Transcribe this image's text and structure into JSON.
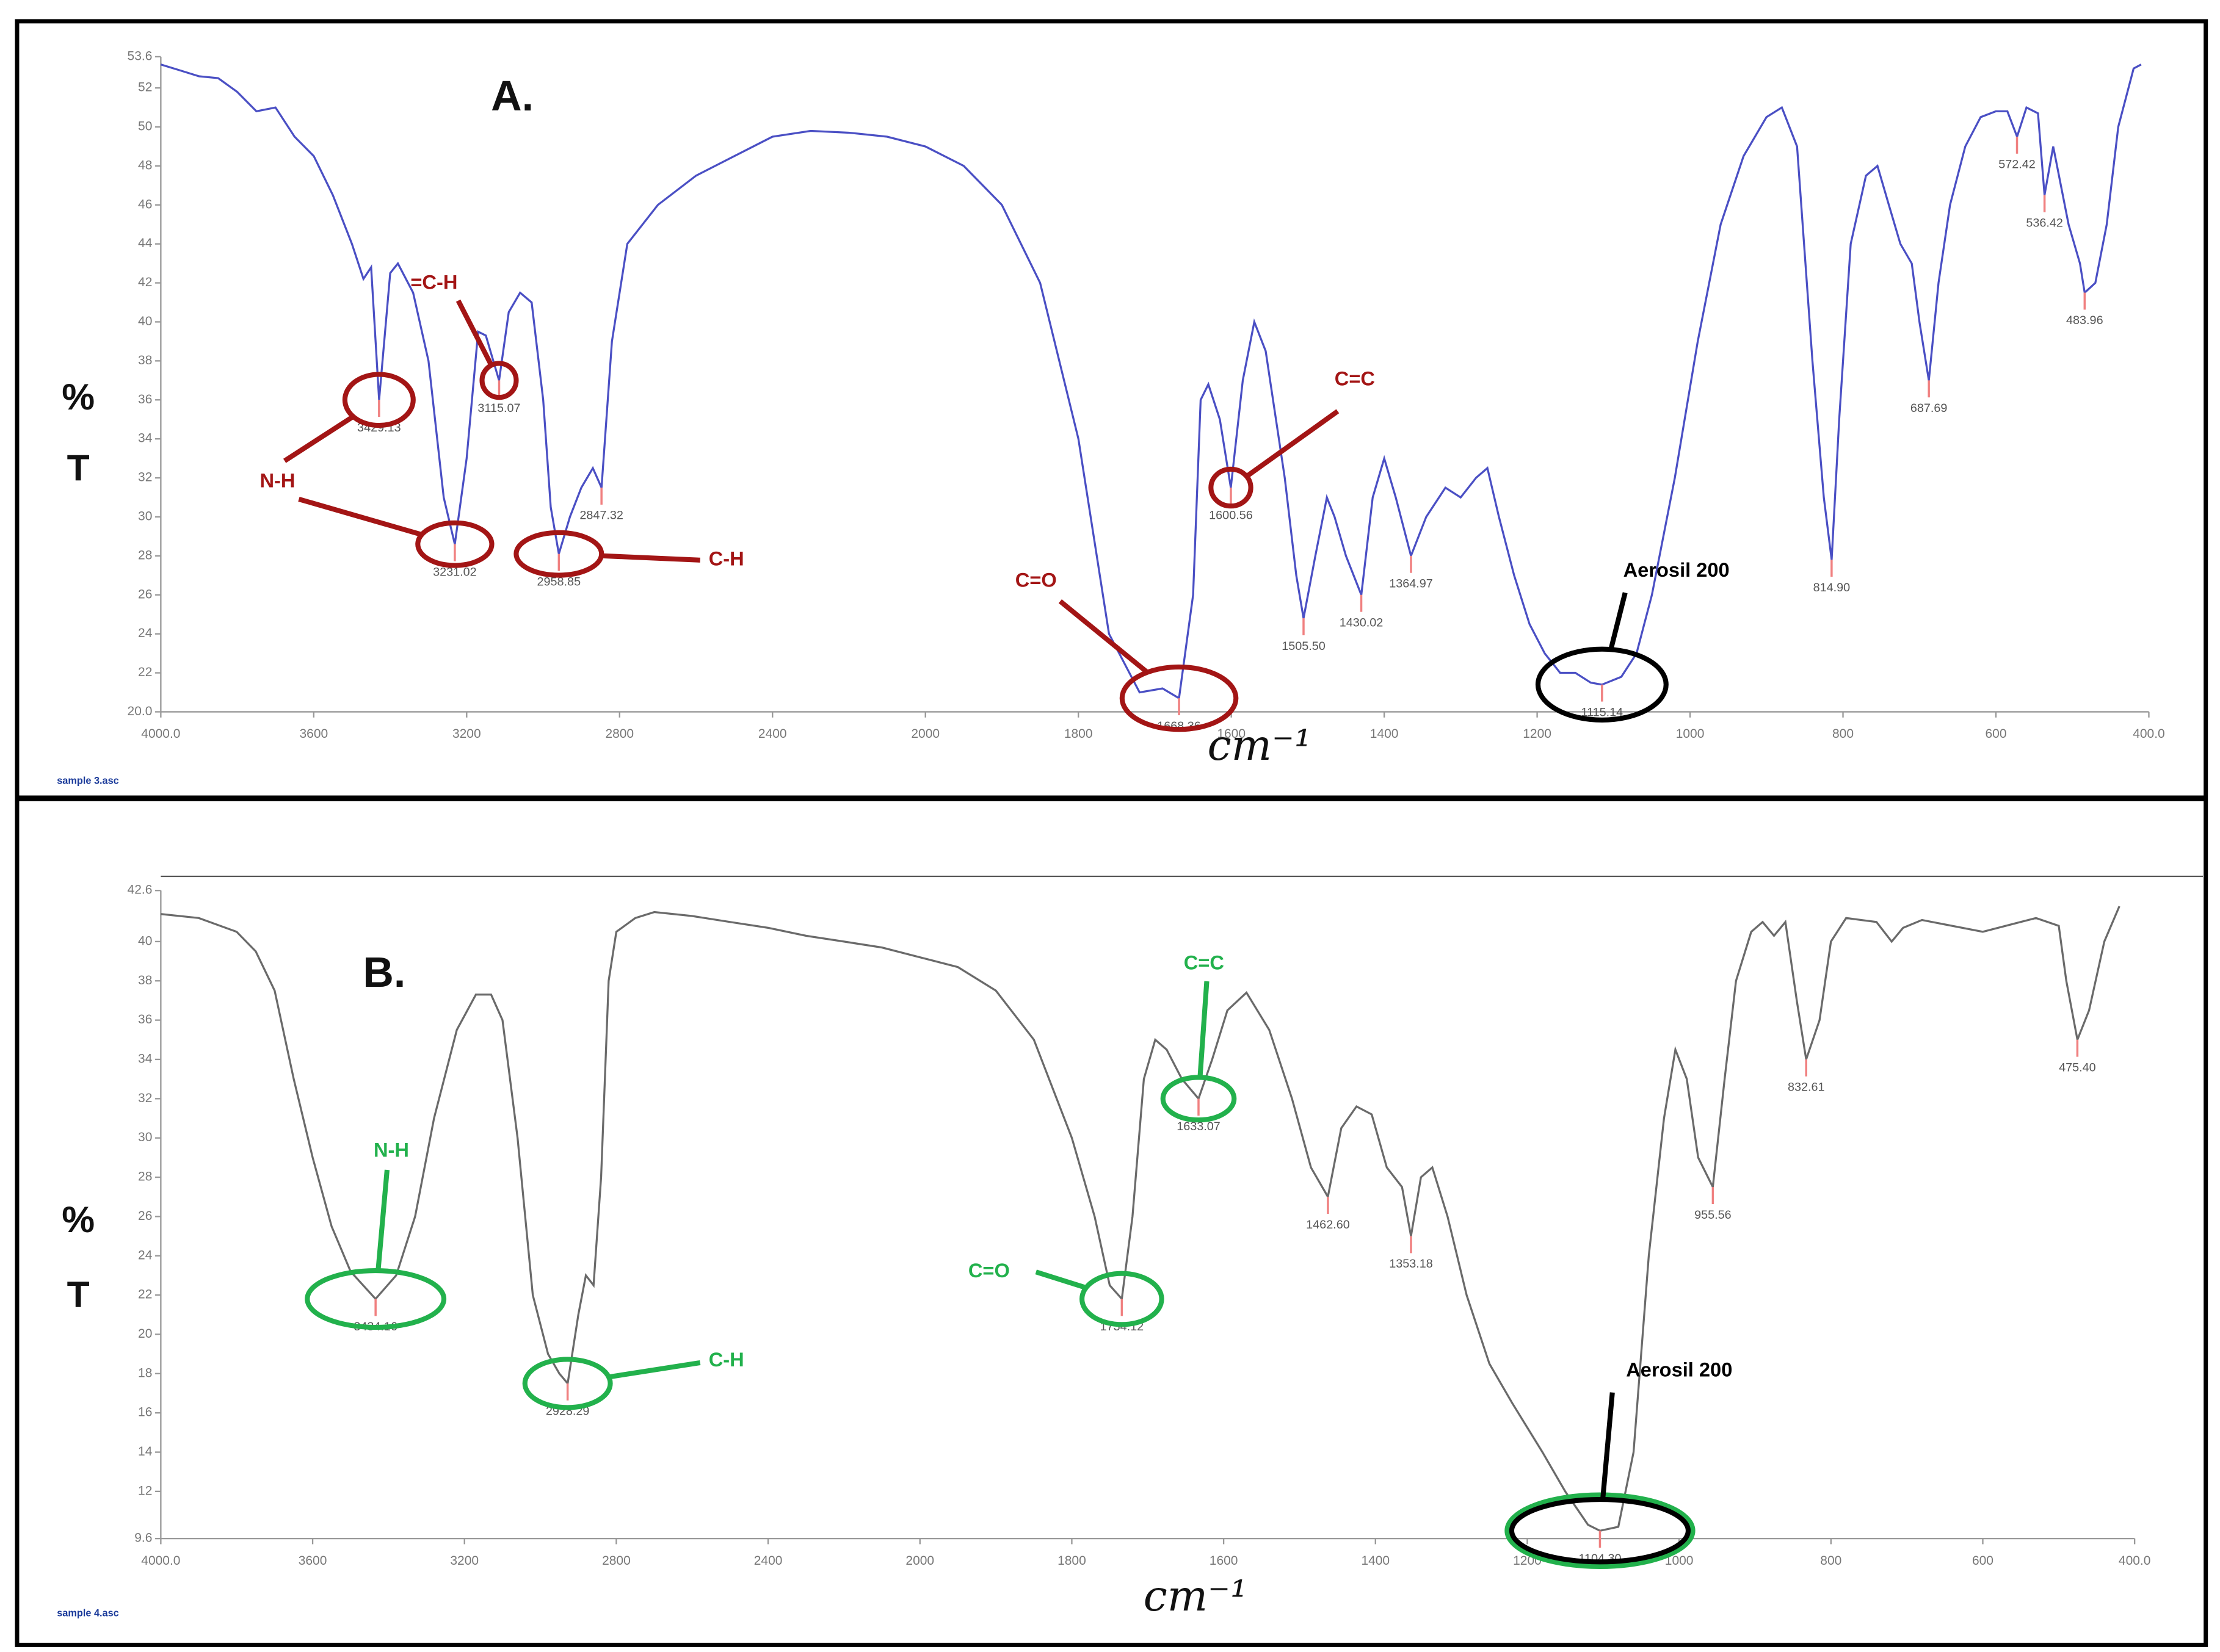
{
  "chart_data": [
    {
      "type": "line",
      "title": "A.",
      "ylabel": [
        "%",
        "T"
      ],
      "xlabel": "cm⁻¹",
      "footer": "sample 3.asc",
      "color": "#4a4fc4",
      "annotation_color": "#a31515",
      "xlim": [
        4000,
        400
      ],
      "ylim": [
        20,
        53.6
      ],
      "xticks": [
        {
          "value": 4000,
          "label": "4000.0"
        },
        3600,
        3200,
        2800,
        2400,
        2000,
        1800,
        1600,
        1400,
        1200,
        1000,
        800,
        600,
        {
          "value": 400,
          "label": "400.0"
        }
      ],
      "yticks": [
        {
          "value": 20,
          "label": "20.0"
        },
        22,
        24,
        26,
        28,
        30,
        32,
        34,
        36,
        38,
        40,
        42,
        44,
        46,
        48,
        50,
        52,
        53.6
      ],
      "x": [
        4000,
        3950,
        3900,
        3850,
        3800,
        3750,
        3700,
        3650,
        3600,
        3550,
        3500,
        3470,
        3450,
        3429.13,
        3400,
        3380,
        3340,
        3300,
        3260,
        3231.02,
        3200,
        3170,
        3150,
        3115.07,
        3090,
        3060,
        3030,
        3000,
        2980,
        2958.85,
        2930,
        2900,
        2870,
        2847.32,
        2820,
        2780,
        2700,
        2600,
        2500,
        2400,
        2300,
        2200,
        2100,
        2000,
        1950,
        1900,
        1850,
        1800,
        1760,
        1720,
        1690,
        1668.36,
        1650,
        1640,
        1630,
        1615,
        1600.56,
        1585,
        1570,
        1555,
        1530,
        1515,
        1505.5,
        1490,
        1475,
        1465,
        1450,
        1430.02,
        1415,
        1400,
        1385,
        1364.97,
        1345,
        1320,
        1300,
        1280,
        1265,
        1250,
        1230,
        1210,
        1190,
        1170,
        1150,
        1130,
        1115.14,
        1090,
        1070,
        1050,
        1020,
        990,
        960,
        930,
        900,
        880,
        860,
        840,
        825,
        814.9,
        805,
        790,
        770,
        755,
        740,
        725,
        710,
        700,
        687.69,
        675,
        660,
        640,
        620,
        600,
        585,
        572.42,
        560,
        545,
        536.42,
        525,
        505,
        490,
        483.96,
        470,
        455,
        440,
        420,
        410
      ],
      "values": [
        53.2,
        52.9,
        52.6,
        52.5,
        51.8,
        50.8,
        51.0,
        49.5,
        48.5,
        46.5,
        44,
        42.2,
        42.8,
        36,
        42.5,
        43,
        41.5,
        38,
        31,
        28.6,
        33,
        39.5,
        39.3,
        37,
        40.5,
        41.5,
        41,
        36,
        30.5,
        28.1,
        30,
        31.5,
        32.5,
        31.5,
        39,
        44,
        46,
        47.5,
        48.5,
        49.5,
        49.8,
        49.7,
        49.5,
        49,
        48,
        46,
        42,
        34,
        24,
        21,
        21.2,
        20.7,
        26,
        36,
        36.8,
        35,
        31.5,
        37,
        40,
        38.5,
        32,
        27,
        24.8,
        28,
        31,
        30,
        28,
        26,
        31,
        33,
        31,
        28,
        30,
        31.5,
        31,
        32,
        32.5,
        30,
        27,
        24.5,
        23,
        22,
        22,
        21.5,
        21.4,
        21.8,
        23,
        26,
        32,
        39,
        45,
        48.5,
        50.5,
        51,
        49,
        38,
        31,
        27.8,
        35,
        44,
        47.5,
        48,
        46,
        44,
        43,
        40,
        37,
        42,
        46,
        49,
        50.5,
        50.8,
        50.8,
        49.5,
        51,
        50.7,
        46.5,
        49,
        45,
        43,
        41.5,
        42,
        45,
        50,
        53,
        53.2
      ],
      "peaks": [
        {
          "x": 3429.13,
          "y": 36,
          "label": "3429.13"
        },
        {
          "x": 3231.02,
          "y": 28.6,
          "label": "3231.02"
        },
        {
          "x": 3115.07,
          "y": 37,
          "label": "3115.07"
        },
        {
          "x": 2958.85,
          "y": 28.1,
          "label": "2958.85"
        },
        {
          "x": 2847.32,
          "y": 31.5,
          "label": "2847.32"
        },
        {
          "x": 1668.36,
          "y": 20.7,
          "label": "1668.36"
        },
        {
          "x": 1600.56,
          "y": 31.5,
          "label": "1600.56"
        },
        {
          "x": 1505.5,
          "y": 24.8,
          "label": "1505.50"
        },
        {
          "x": 1430.02,
          "y": 26,
          "label": "1430.02"
        },
        {
          "x": 1364.97,
          "y": 28,
          "label": "1364.97"
        },
        {
          "x": 1115.14,
          "y": 21.4,
          "label": "1115.14"
        },
        {
          "x": 814.9,
          "y": 27.8,
          "label": "814.90"
        },
        {
          "x": 687.69,
          "y": 37,
          "label": "687.69"
        },
        {
          "x": 572.42,
          "y": 49.5,
          "label": "572.42"
        },
        {
          "x": 536.42,
          "y": 46.5,
          "label": "536.42"
        },
        {
          "x": 483.96,
          "y": 41.5,
          "label": "483.96"
        }
      ],
      "annotations": [
        "N-H",
        "=C-H",
        "C-H",
        "C=O",
        "C=C",
        "Aerosil 200"
      ]
    },
    {
      "type": "line",
      "title": "B.",
      "ylabel": [
        "%",
        "T"
      ],
      "xlabel": "cm⁻¹",
      "footer": "sample 4.asc",
      "color": "#6a6a6a",
      "annotation_color": "#22b14c",
      "xlim": [
        4000,
        400
      ],
      "ylim": [
        9.6,
        42.6
      ],
      "xticks": [
        {
          "value": 4000,
          "label": "4000.0"
        },
        3600,
        3200,
        2800,
        2400,
        2000,
        1800,
        1600,
        1400,
        1200,
        1000,
        800,
        600,
        {
          "value": 400,
          "label": "400.0"
        }
      ],
      "yticks": [
        9.6,
        12,
        14,
        16,
        18,
        20,
        22,
        24,
        26,
        28,
        30,
        32,
        34,
        36,
        38,
        40,
        42.6
      ],
      "x": [
        4000,
        3900,
        3800,
        3750,
        3700,
        3650,
        3600,
        3550,
        3500,
        3434.16,
        3380,
        3330,
        3280,
        3220,
        3170,
        3130,
        3100,
        3060,
        3020,
        2980,
        2950,
        2928.29,
        2900,
        2880,
        2860,
        2840,
        2820,
        2800,
        2750,
        2700,
        2600,
        2500,
        2400,
        2300,
        2200,
        2100,
        2000,
        1950,
        1900,
        1850,
        1800,
        1770,
        1750,
        1734.12,
        1720,
        1705,
        1690,
        1675,
        1655,
        1633.07,
        1615,
        1595,
        1570,
        1540,
        1510,
        1485,
        1462.6,
        1445,
        1425,
        1405,
        1385,
        1365,
        1353.18,
        1340,
        1325,
        1305,
        1280,
        1250,
        1220,
        1180,
        1150,
        1120,
        1104.3,
        1080,
        1060,
        1040,
        1020,
        1005,
        990,
        975,
        955.56,
        940,
        925,
        905,
        890,
        875,
        860,
        845,
        832.61,
        815,
        800,
        780,
        740,
        720,
        705,
        680,
        600,
        530,
        500,
        490,
        475.4,
        460,
        440,
        420
      ],
      "values": [
        41.4,
        41.2,
        40.5,
        39.5,
        37.5,
        33,
        29,
        25.5,
        23.2,
        21.8,
        23,
        26,
        31,
        35.5,
        37.3,
        37.3,
        36,
        30,
        22,
        19,
        18,
        17.5,
        21,
        23,
        22.5,
        28,
        38,
        40.5,
        41.2,
        41.5,
        41.3,
        41,
        40.7,
        40.3,
        40,
        39.7,
        39.2,
        38.7,
        37.5,
        35,
        30,
        26,
        22.5,
        21.8,
        26,
        33,
        35,
        34.5,
        33,
        32,
        34,
        36.5,
        37.4,
        35.5,
        32,
        28.5,
        27,
        30.5,
        31.6,
        31.2,
        28.5,
        27.5,
        25,
        28,
        28.5,
        26,
        22,
        18.5,
        16.5,
        14,
        12,
        10.3,
        10,
        10.2,
        14,
        24,
        31,
        34.5,
        33,
        29,
        27.5,
        33,
        38,
        40.5,
        41,
        40.3,
        41,
        37,
        34,
        36,
        40,
        41.2,
        41,
        40,
        40.7,
        41.1,
        40.5,
        41.2,
        40.8,
        38,
        35,
        36.5,
        40,
        41.8
      ],
      "peaks": [
        {
          "x": 3434.16,
          "y": 21.8,
          "label": "3434.16"
        },
        {
          "x": 2928.29,
          "y": 17.5,
          "label": "2928.29"
        },
        {
          "x": 1734.12,
          "y": 21.8,
          "label": "1734.12"
        },
        {
          "x": 1633.07,
          "y": 32,
          "label": "1633.07"
        },
        {
          "x": 1462.6,
          "y": 27,
          "label": "1462.60"
        },
        {
          "x": 1353.18,
          "y": 25,
          "label": "1353.18"
        },
        {
          "x": 1104.3,
          "y": 10,
          "label": "1104.30"
        },
        {
          "x": 955.56,
          "y": 27.5,
          "label": "955.56"
        },
        {
          "x": 832.61,
          "y": 34,
          "label": "832.61"
        },
        {
          "x": 475.4,
          "y": 35,
          "label": "475.40"
        }
      ],
      "annotations": [
        "N-H",
        "C-H",
        "C=O",
        "C=C",
        "Aerosil 200"
      ]
    }
  ]
}
